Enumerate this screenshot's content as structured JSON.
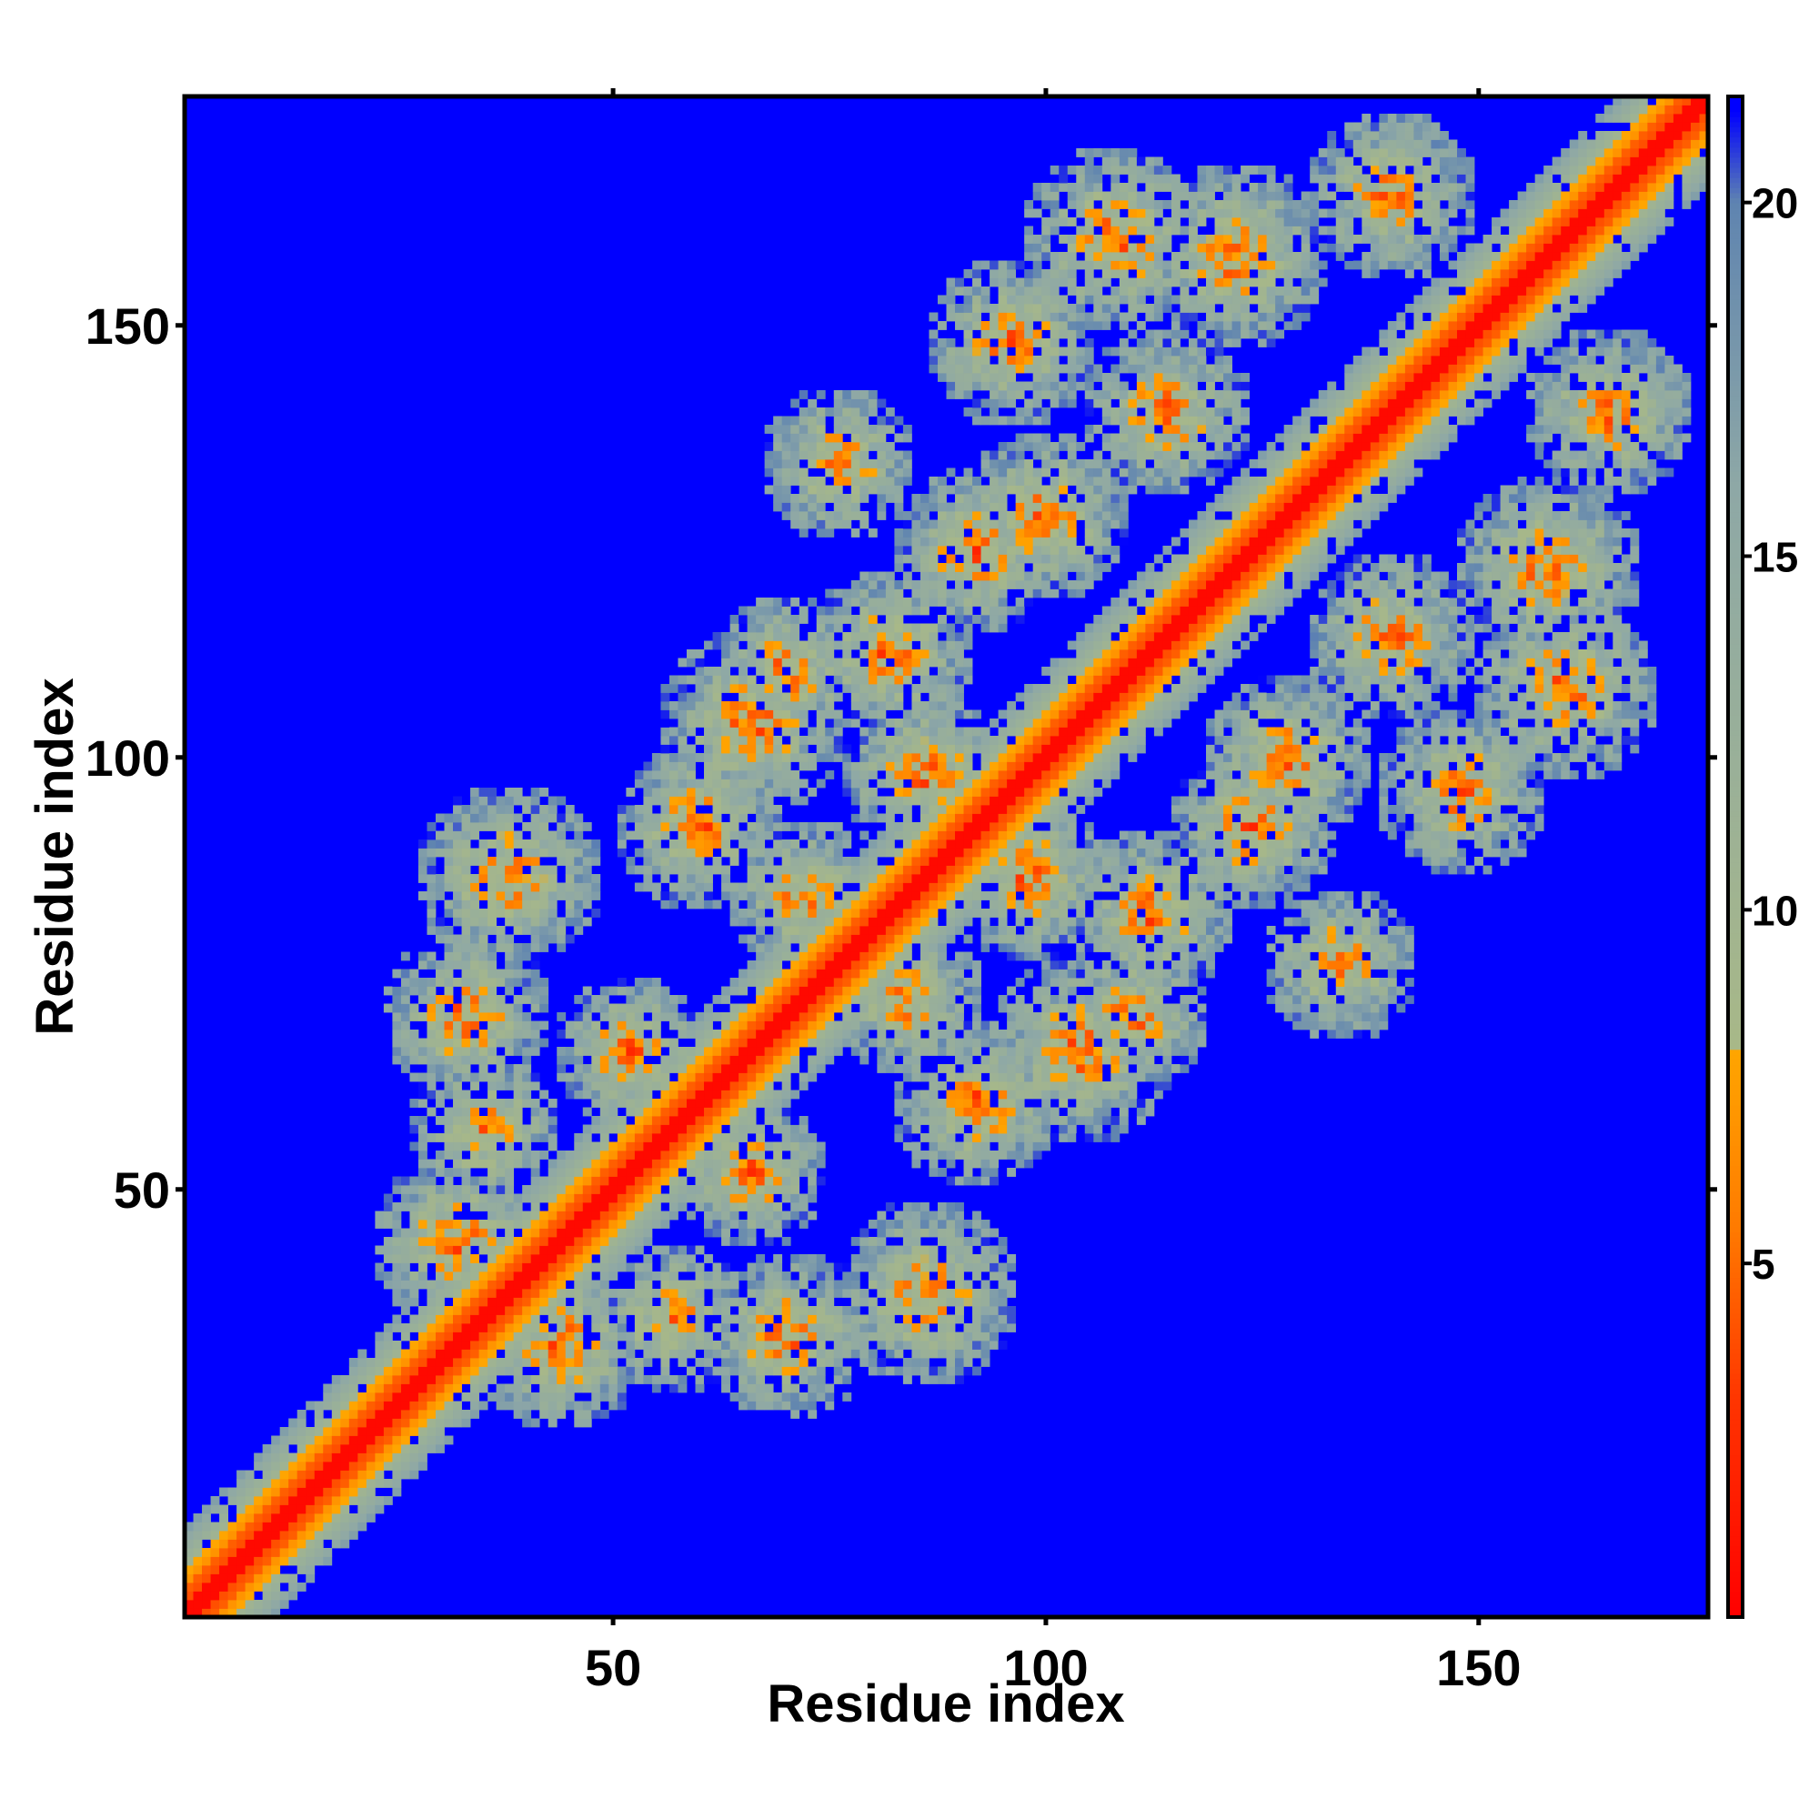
{
  "chart_data": {
    "type": "heatmap",
    "title": "",
    "xlabel": "Residue index",
    "ylabel": "Residue index",
    "xlim": [
      1,
      176
    ],
    "ylim": [
      1,
      176
    ],
    "n_residues": 176,
    "x_ticks": [
      50,
      100,
      150
    ],
    "y_ticks": [
      50,
      100,
      150
    ],
    "colorbar": {
      "range": [
        0,
        21.5
      ],
      "ticks": [
        5,
        10,
        15,
        20
      ],
      "color_stops": [
        {
          "value": 0.0,
          "color": "#ff0000"
        },
        {
          "value": 3.0,
          "color": "#ff3300"
        },
        {
          "value": 5.5,
          "color": "#ff7a00"
        },
        {
          "value": 8.0,
          "color": "#ffa500"
        },
        {
          "value": 8.05,
          "color": "#a8b888"
        },
        {
          "value": 12.0,
          "color": "#9ab098"
        },
        {
          "value": 16.0,
          "color": "#8ea8a6"
        },
        {
          "value": 20.0,
          "color": "#5f84b0"
        },
        {
          "value": 21.3,
          "color": "#0000ff"
        }
      ],
      "background_color": "#0000ff"
    },
    "description_of_values": "Symmetric residue-residue distance map; values near 0 on the diagonal, ~5-8 in orange contact patches, ~10-20 in grey-green halos, >21 elsewhere (blue)."
  }
}
